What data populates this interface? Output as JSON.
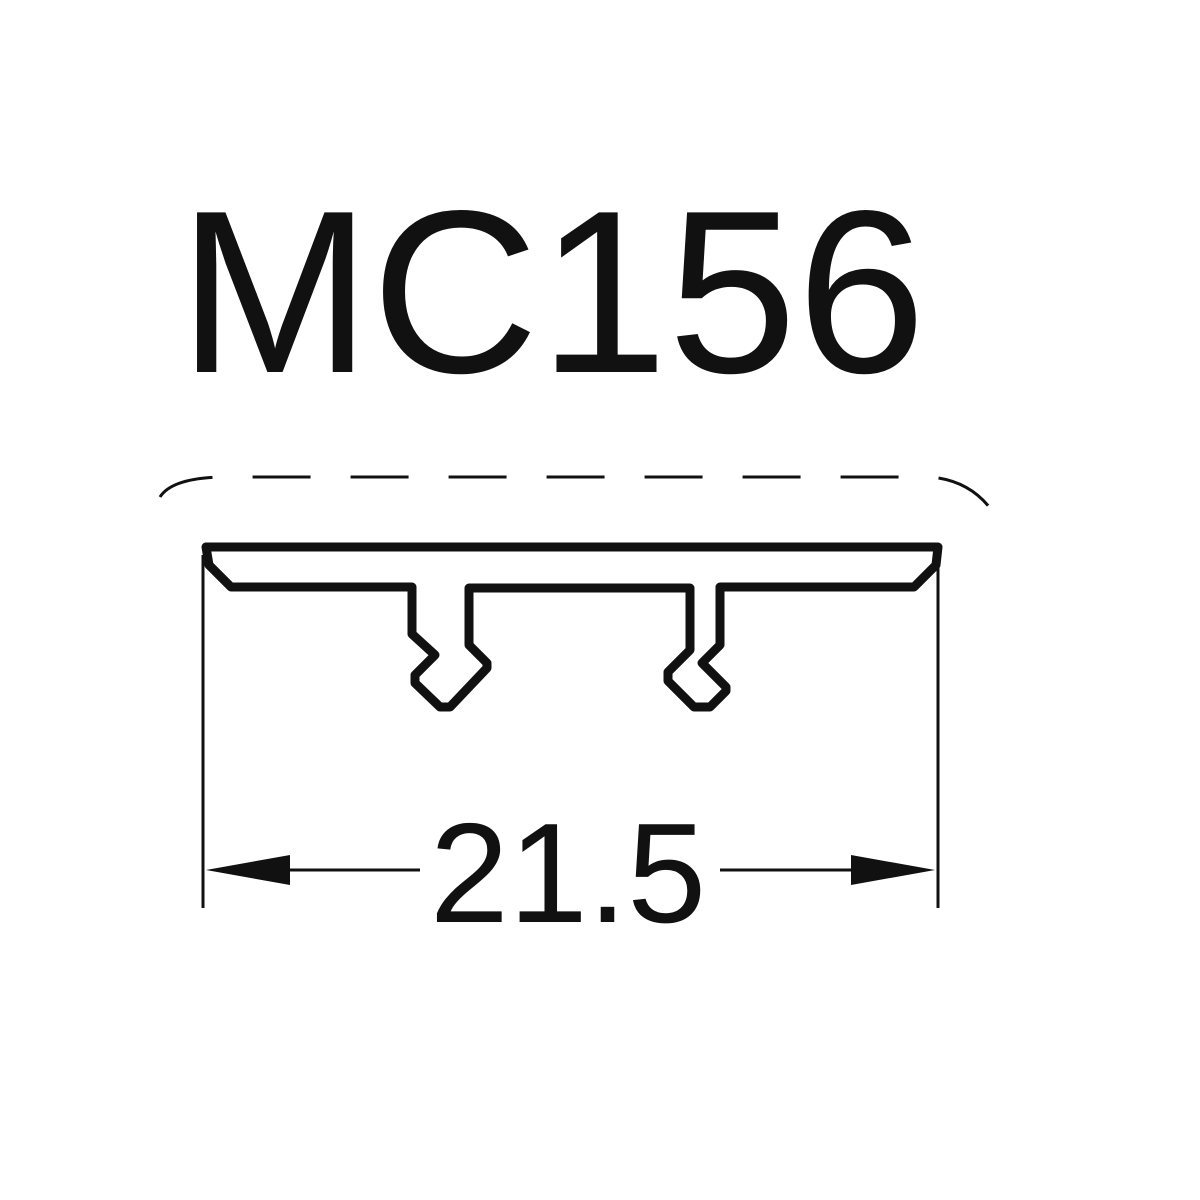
{
  "part": {
    "code": "MC156"
  },
  "dimension": {
    "width_label": "21.5",
    "unit": ""
  },
  "colors": {
    "line": "#111111",
    "background": "#ffffff"
  }
}
